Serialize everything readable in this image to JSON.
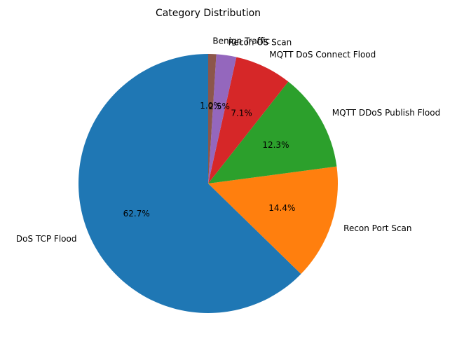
{
  "chart_data": {
    "type": "pie",
    "title": "Category Distribution",
    "start_angle_deg": 90,
    "direction": "counterclockwise",
    "slices": [
      {
        "label": "DoS TCP Flood",
        "value": 62.7,
        "pct_label": "62.7%",
        "color": "#1f77b4"
      },
      {
        "label": "Recon Port Scan",
        "value": 14.4,
        "pct_label": "14.4%",
        "color": "#ff7f0e"
      },
      {
        "label": "MQTT DDoS Publish Flood",
        "value": 12.3,
        "pct_label": "12.3%",
        "color": "#2ca02c"
      },
      {
        "label": "MQTT DoS Connect Flood",
        "value": 7.1,
        "pct_label": "7.1%",
        "color": "#d62728"
      },
      {
        "label": "Recon OS Scan",
        "value": 2.5,
        "pct_label": "2.5%",
        "color": "#9467bd"
      },
      {
        "label": "Benign Traffic",
        "value": 1.0,
        "pct_label": "1.0%",
        "color": "#8c564b"
      }
    ]
  }
}
